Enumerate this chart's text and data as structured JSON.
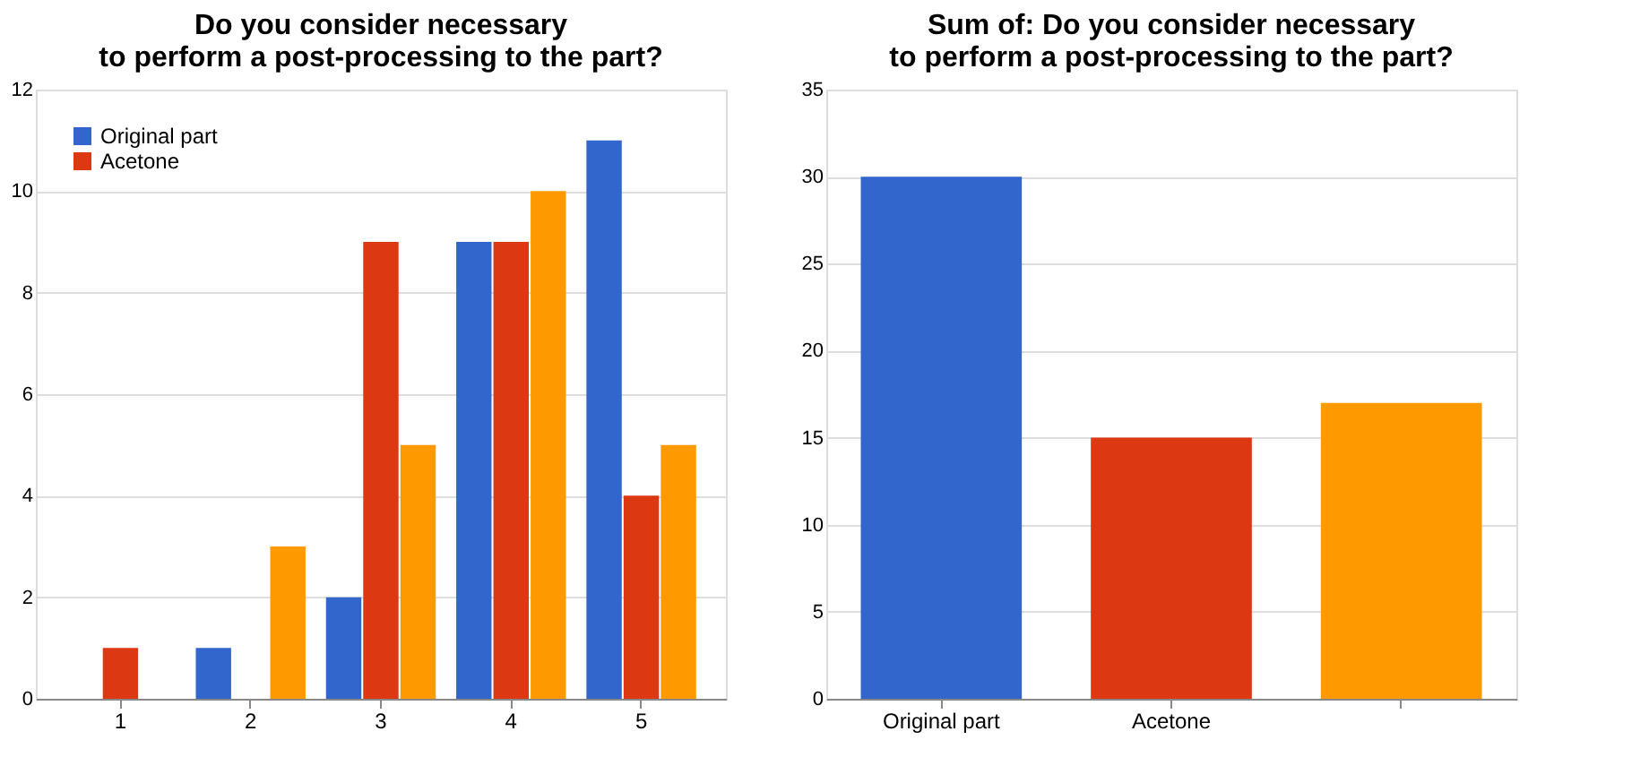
{
  "chart_data": [
    {
      "type": "bar",
      "title": "Do you consider necessary\nto perform a post-processing to the part?",
      "categories": [
        "1",
        "2",
        "3",
        "4",
        "5"
      ],
      "series": [
        {
          "name": "Original part",
          "color": "#3366cc",
          "values": [
            0,
            1,
            2,
            9,
            11
          ]
        },
        {
          "name": "Acetone",
          "color": "#dc3912",
          "values": [
            1,
            0,
            9,
            9,
            4
          ]
        },
        {
          "color": "#ff9900",
          "values": [
            0,
            3,
            5,
            10,
            5
          ]
        }
      ],
      "ylim": [
        0,
        12
      ],
      "yticks": [
        0,
        2,
        4,
        6,
        8,
        10,
        12
      ],
      "grid": "y",
      "legend": "left"
    },
    {
      "type": "bar",
      "title": "Sum of: Do you consider necessary\nto perform a post-processing to the part?",
      "categories": [
        "Original part",
        "Acetone",
        null
      ],
      "values": [
        30,
        15,
        17
      ],
      "colors": [
        "#3366cc",
        "#dc3912",
        "#ff9900"
      ],
      "ylim": [
        0,
        35
      ],
      "yticks": [
        0,
        5,
        10,
        15,
        20,
        25,
        30,
        35
      ],
      "grid": "y"
    }
  ]
}
